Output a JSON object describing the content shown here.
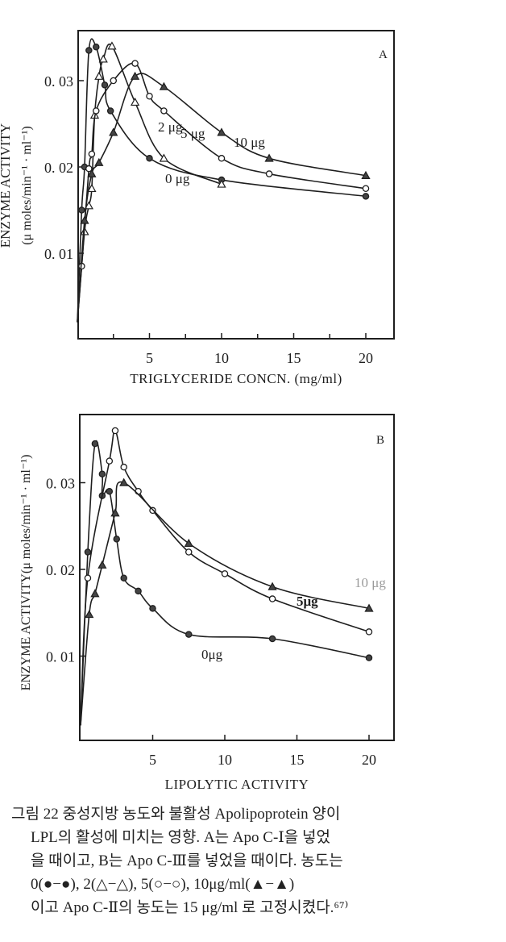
{
  "chart_data": [
    {
      "type": "line",
      "panel_label": "A",
      "xlabel": "TRIGLYCERIDE  CONCN. (mg/ml)",
      "ylabel": "ENZYME  ACTIVITY",
      "ylabel_units": "(μ moles/min⁻¹ · ml⁻¹)",
      "xlim": [
        0,
        22
      ],
      "ylim": [
        0,
        0.0358
      ],
      "x_ticks": [
        5,
        10,
        15,
        20
      ],
      "x_tick_labels": [
        "5",
        "10",
        "15",
        "20"
      ],
      "x_minor_ticks": [
        2.5,
        7.5,
        12.5,
        17.5
      ],
      "y_ticks": [
        0.01,
        0.02,
        0.03
      ],
      "y_tick_labels": [
        "0. 01",
        "0. 02",
        "0. 03"
      ],
      "grid": false,
      "series": [
        {
          "name": "0 μg",
          "marker": "filled-circle",
          "points": [
            [
              0.3,
              0.015
            ],
            [
              0.5,
              0.02
            ],
            [
              0.8,
              0.0335
            ],
            [
              1.3,
              0.0339
            ],
            [
              1.9,
              0.0295
            ],
            [
              2.3,
              0.0265
            ],
            [
              5,
              0.021
            ],
            [
              10,
              0.0185
            ],
            [
              20,
              0.0166
            ]
          ]
        },
        {
          "name": "2 μg",
          "marker": "open-triangle",
          "points": [
            [
              0.5,
              0.0125
            ],
            [
              0.8,
              0.0155
            ],
            [
              1.0,
              0.0175
            ],
            [
              1.2,
              0.026
            ],
            [
              1.5,
              0.0305
            ],
            [
              1.8,
              0.0325
            ],
            [
              2.4,
              0.034
            ],
            [
              4,
              0.0275
            ],
            [
              6,
              0.021
            ],
            [
              10,
              0.018
            ]
          ]
        },
        {
          "name": "5 μg",
          "marker": "open-circle",
          "points": [
            [
              0.3,
              0.0085
            ],
            [
              0.8,
              0.0198
            ],
            [
              1.0,
              0.0215
            ],
            [
              1.3,
              0.0265
            ],
            [
              2.5,
              0.03
            ],
            [
              4,
              0.032
            ],
            [
              5,
              0.0282
            ],
            [
              6,
              0.0265
            ],
            [
              10,
              0.021
            ],
            [
              13.3,
              0.0192
            ],
            [
              20,
              0.0175
            ]
          ]
        },
        {
          "name": "10 μg",
          "marker": "filled-triangle",
          "points": [
            [
              0.5,
              0.0138
            ],
            [
              1.0,
              0.0192
            ],
            [
              1.5,
              0.0205
            ],
            [
              2.5,
              0.024
            ],
            [
              4,
              0.0305
            ],
            [
              6,
              0.0293
            ],
            [
              10,
              0.024
            ],
            [
              13.3,
              0.021
            ],
            [
              20,
              0.019
            ]
          ]
        }
      ],
      "curve_labels": [
        "0 μg",
        "2 μg",
        "5 μg",
        "10 μg"
      ]
    },
    {
      "type": "line",
      "panel_label": "B",
      "xlabel": "LIPOLYTIC  ACTIVITY",
      "ylabel": "ENZYME  ACTIVITY(μ moles/min⁻¹ · ml⁻¹)",
      "xlim": [
        0,
        22
      ],
      "ylim": [
        0,
        0.0373
      ],
      "x_ticks": [
        5,
        10,
        15,
        20
      ],
      "x_tick_labels": [
        "5",
        "10",
        "15",
        "20"
      ],
      "x_minor_ticks": [],
      "y_ticks": [
        0.01,
        0.02,
        0.03
      ],
      "y_tick_labels": [
        "0. 01",
        "0. 02",
        "0. 03"
      ],
      "grid": false,
      "series": [
        {
          "name": "0μg",
          "marker": "filled-circle",
          "points": [
            [
              0.5,
              0.022
            ],
            [
              1.0,
              0.0345
            ],
            [
              1.5,
              0.031
            ],
            [
              1.5,
              0.0285
            ],
            [
              2,
              0.029
            ],
            [
              2.5,
              0.0235
            ],
            [
              3,
              0.019
            ],
            [
              4,
              0.0175
            ],
            [
              5,
              0.0155
            ],
            [
              7.5,
              0.0125
            ],
            [
              13.3,
              0.012
            ],
            [
              20,
              0.0098
            ]
          ]
        },
        {
          "name": "5μg",
          "marker": "open-circle",
          "points": [
            [
              0.5,
              0.019
            ],
            [
              2,
              0.0325
            ],
            [
              2.4,
              0.036
            ],
            [
              3,
              0.0318
            ],
            [
              4,
              0.029
            ],
            [
              5,
              0.0268
            ],
            [
              7.5,
              0.022
            ],
            [
              10,
              0.0195
            ],
            [
              13.3,
              0.0166
            ],
            [
              20,
              0.0128
            ]
          ]
        },
        {
          "name": "10 μg",
          "marker": "filled-triangle",
          "points": [
            [
              0.6,
              0.0148
            ],
            [
              1.0,
              0.0172
            ],
            [
              1.5,
              0.0205
            ],
            [
              2.4,
              0.0265
            ],
            [
              3,
              0.03
            ],
            [
              7.5,
              0.023
            ],
            [
              13.3,
              0.018
            ],
            [
              20,
              0.0155
            ]
          ]
        }
      ],
      "curve_labels": [
        "10 μg",
        "5μg",
        "0μg"
      ]
    }
  ],
  "caption": {
    "lines": [
      "그림 22  중성지방 농도와 불활성 Apolipoprotein 양이",
      "LPL의 활성에 미치는 영향. A는 Apo C-Ⅰ을 넣었",
      "을 때이고, B는 Apo C-Ⅲ를 넣었을 때이다. 농도는",
      "0(●−●), 2(△−△), 5(○−○), 10μg/ml(▲−▲)",
      "이고 Apo C-Ⅱ의 농도는 15 μg/ml 로 고정시켰다.⁶⁷⁾"
    ]
  }
}
